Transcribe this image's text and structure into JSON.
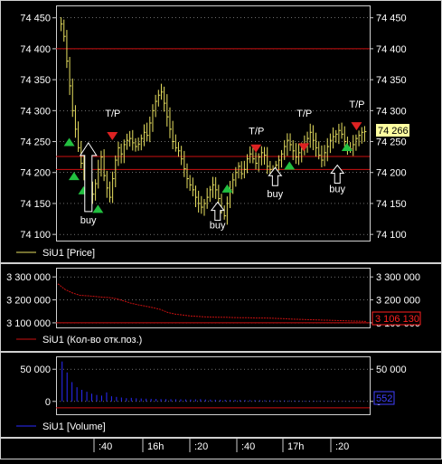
{
  "colors": {
    "background": "#000000",
    "price": "#e8e060",
    "oi": "#cc1111",
    "volume": "#2a2aff",
    "grid": "#b0b0b0",
    "level": "#cc1111",
    "buy": "#22c040",
    "tp": "#dd2222",
    "last_price_bg": "#ffffa0",
    "oi_box": "#ff2020",
    "vol_box": "#4040ff"
  },
  "chart_data": [
    {
      "type": "bar",
      "title": "",
      "legend": "SiU1 [Price]",
      "ylim": [
        74090,
        74470
      ],
      "y_ticks": [
        "74 450",
        "74 400",
        "74 350",
        "74 300",
        "74 250",
        "74 200",
        "74 150",
        "74 100"
      ],
      "y_tick_values": [
        74450,
        74400,
        74350,
        74300,
        74250,
        74200,
        74150,
        74100
      ],
      "last_value_label": "74 266",
      "levels": [
        74400,
        74226,
        74205
      ],
      "series_values": [
        74440,
        74420,
        74380,
        74340,
        74300,
        74270,
        74240,
        74215,
        74195,
        74178,
        74170,
        74165,
        74182,
        74205,
        74225,
        74195,
        74175,
        74160,
        74190,
        74220,
        74240,
        74230,
        74245,
        74252,
        74255,
        74248,
        74242,
        74246,
        74255,
        74265,
        74260,
        74280,
        74300,
        74315,
        74325,
        74330,
        74312,
        74290,
        74270,
        74250,
        74240,
        74235,
        74222,
        74206,
        74190,
        74180,
        74172,
        74160,
        74150,
        74144,
        74150,
        74160,
        74172,
        74180,
        74172,
        74158,
        74140,
        74130,
        74150,
        74172,
        74188,
        74200,
        74210,
        74198,
        74205,
        74222,
        74230,
        74222,
        74215,
        74225,
        74232,
        74228,
        74210,
        74205,
        74200,
        74212,
        74220,
        74230,
        74242,
        74252,
        74245,
        74235,
        74225,
        74232,
        74238,
        74245,
        74255,
        74265,
        74252,
        74240,
        74228,
        74220,
        74232,
        74242,
        74252,
        74258,
        74262,
        74268,
        74262,
        74250,
        74240,
        74238,
        74245,
        74255,
        74260,
        74265,
        74266
      ],
      "buy_markers": [
        {
          "bar": 2,
          "value": 74250
        },
        {
          "bar": 3,
          "value": 74195
        },
        {
          "bar": 5,
          "value": 74172
        },
        {
          "bar": 8,
          "value": 74142
        },
        {
          "bar": 35,
          "value": 74175
        },
        {
          "bar": 48,
          "value": 74212
        },
        {
          "bar": 60,
          "value": 74242
        }
      ],
      "tp_markers": [
        {
          "bar": 11,
          "value": 74258
        },
        {
          "bar": 41,
          "value": 74238
        },
        {
          "bar": 51,
          "value": 74240
        },
        {
          "bar": 62,
          "value": 74274
        }
      ],
      "annotations": {
        "buy_label": "buy",
        "tp_label": "T/P",
        "buy_arrows": [
          {
            "bar": 6,
            "value": 74248,
            "label_value": 74118
          },
          {
            "bar": 33,
            "value": 74152,
            "label_value": 74110
          },
          {
            "bar": 45,
            "value": 74208,
            "label_value": 74160
          },
          {
            "bar": 58,
            "value": 74212,
            "label_value": 74168
          }
        ],
        "tp_labels": [
          {
            "bar": 11,
            "value": 74290
          },
          {
            "bar": 41,
            "value": 74262
          },
          {
            "bar": 51,
            "value": 74290
          },
          {
            "bar": 62,
            "value": 74305
          }
        ]
      }
    },
    {
      "type": "line",
      "title": "",
      "legend": "SiU1 (Кол-во отк.поз.)",
      "ylim": [
        3080000,
        3340000
      ],
      "y_ticks": [
        "3 300 000",
        "3 200 000",
        "3 100 000"
      ],
      "y_tick_values": [
        3300000,
        3200000,
        3100000
      ],
      "last_value_label": "3 106 130",
      "levels": [
        3100000
      ],
      "values": [
        3270000,
        3245000,
        3230000,
        3220000,
        3218000,
        3215000,
        3212000,
        3210000,
        3205000,
        3195000,
        3185000,
        3178000,
        3172000,
        3166000,
        3158000,
        3145000,
        3138000,
        3134000,
        3130000,
        3128000,
        3126000,
        3125000,
        3124000,
        3124000,
        3123000,
        3122000,
        3122000,
        3121000,
        3121000,
        3120000,
        3119000,
        3118000,
        3116000,
        3115000,
        3114000,
        3113000,
        3112000,
        3111000,
        3110000,
        3109000,
        3108000,
        3107000,
        3106130
      ]
    },
    {
      "type": "bar",
      "title": "",
      "legend": "SiU1 [Volume]",
      "ylim": [
        -20000,
        70000
      ],
      "y_ticks": [
        "50 000",
        "0"
      ],
      "y_tick_values": [
        50000,
        0
      ],
      "last_value_label": "552",
      "levels": [
        -10000
      ],
      "values": [
        62000,
        45000,
        30000,
        22000,
        18000,
        15000,
        12000,
        10000,
        9000,
        14000,
        8000,
        7000,
        6000,
        5000,
        5500,
        4800,
        4500,
        4200,
        4000,
        3800,
        3600,
        3500,
        3400,
        3300,
        3200,
        3100,
        3000,
        3200,
        3500,
        3000,
        2800,
        2700,
        2600,
        2500,
        2400,
        2300,
        2200,
        2100,
        2000,
        2000,
        1900,
        1800,
        1700,
        1600,
        1500,
        1500,
        1400,
        1300,
        1200,
        1100,
        1000,
        1000,
        900,
        900,
        800,
        800,
        700,
        700,
        650,
        600,
        600,
        552
      ]
    }
  ],
  "time_axis": {
    "labels": [
      ":40",
      "16h",
      ":20",
      ":40",
      "17h",
      ":20"
    ]
  }
}
